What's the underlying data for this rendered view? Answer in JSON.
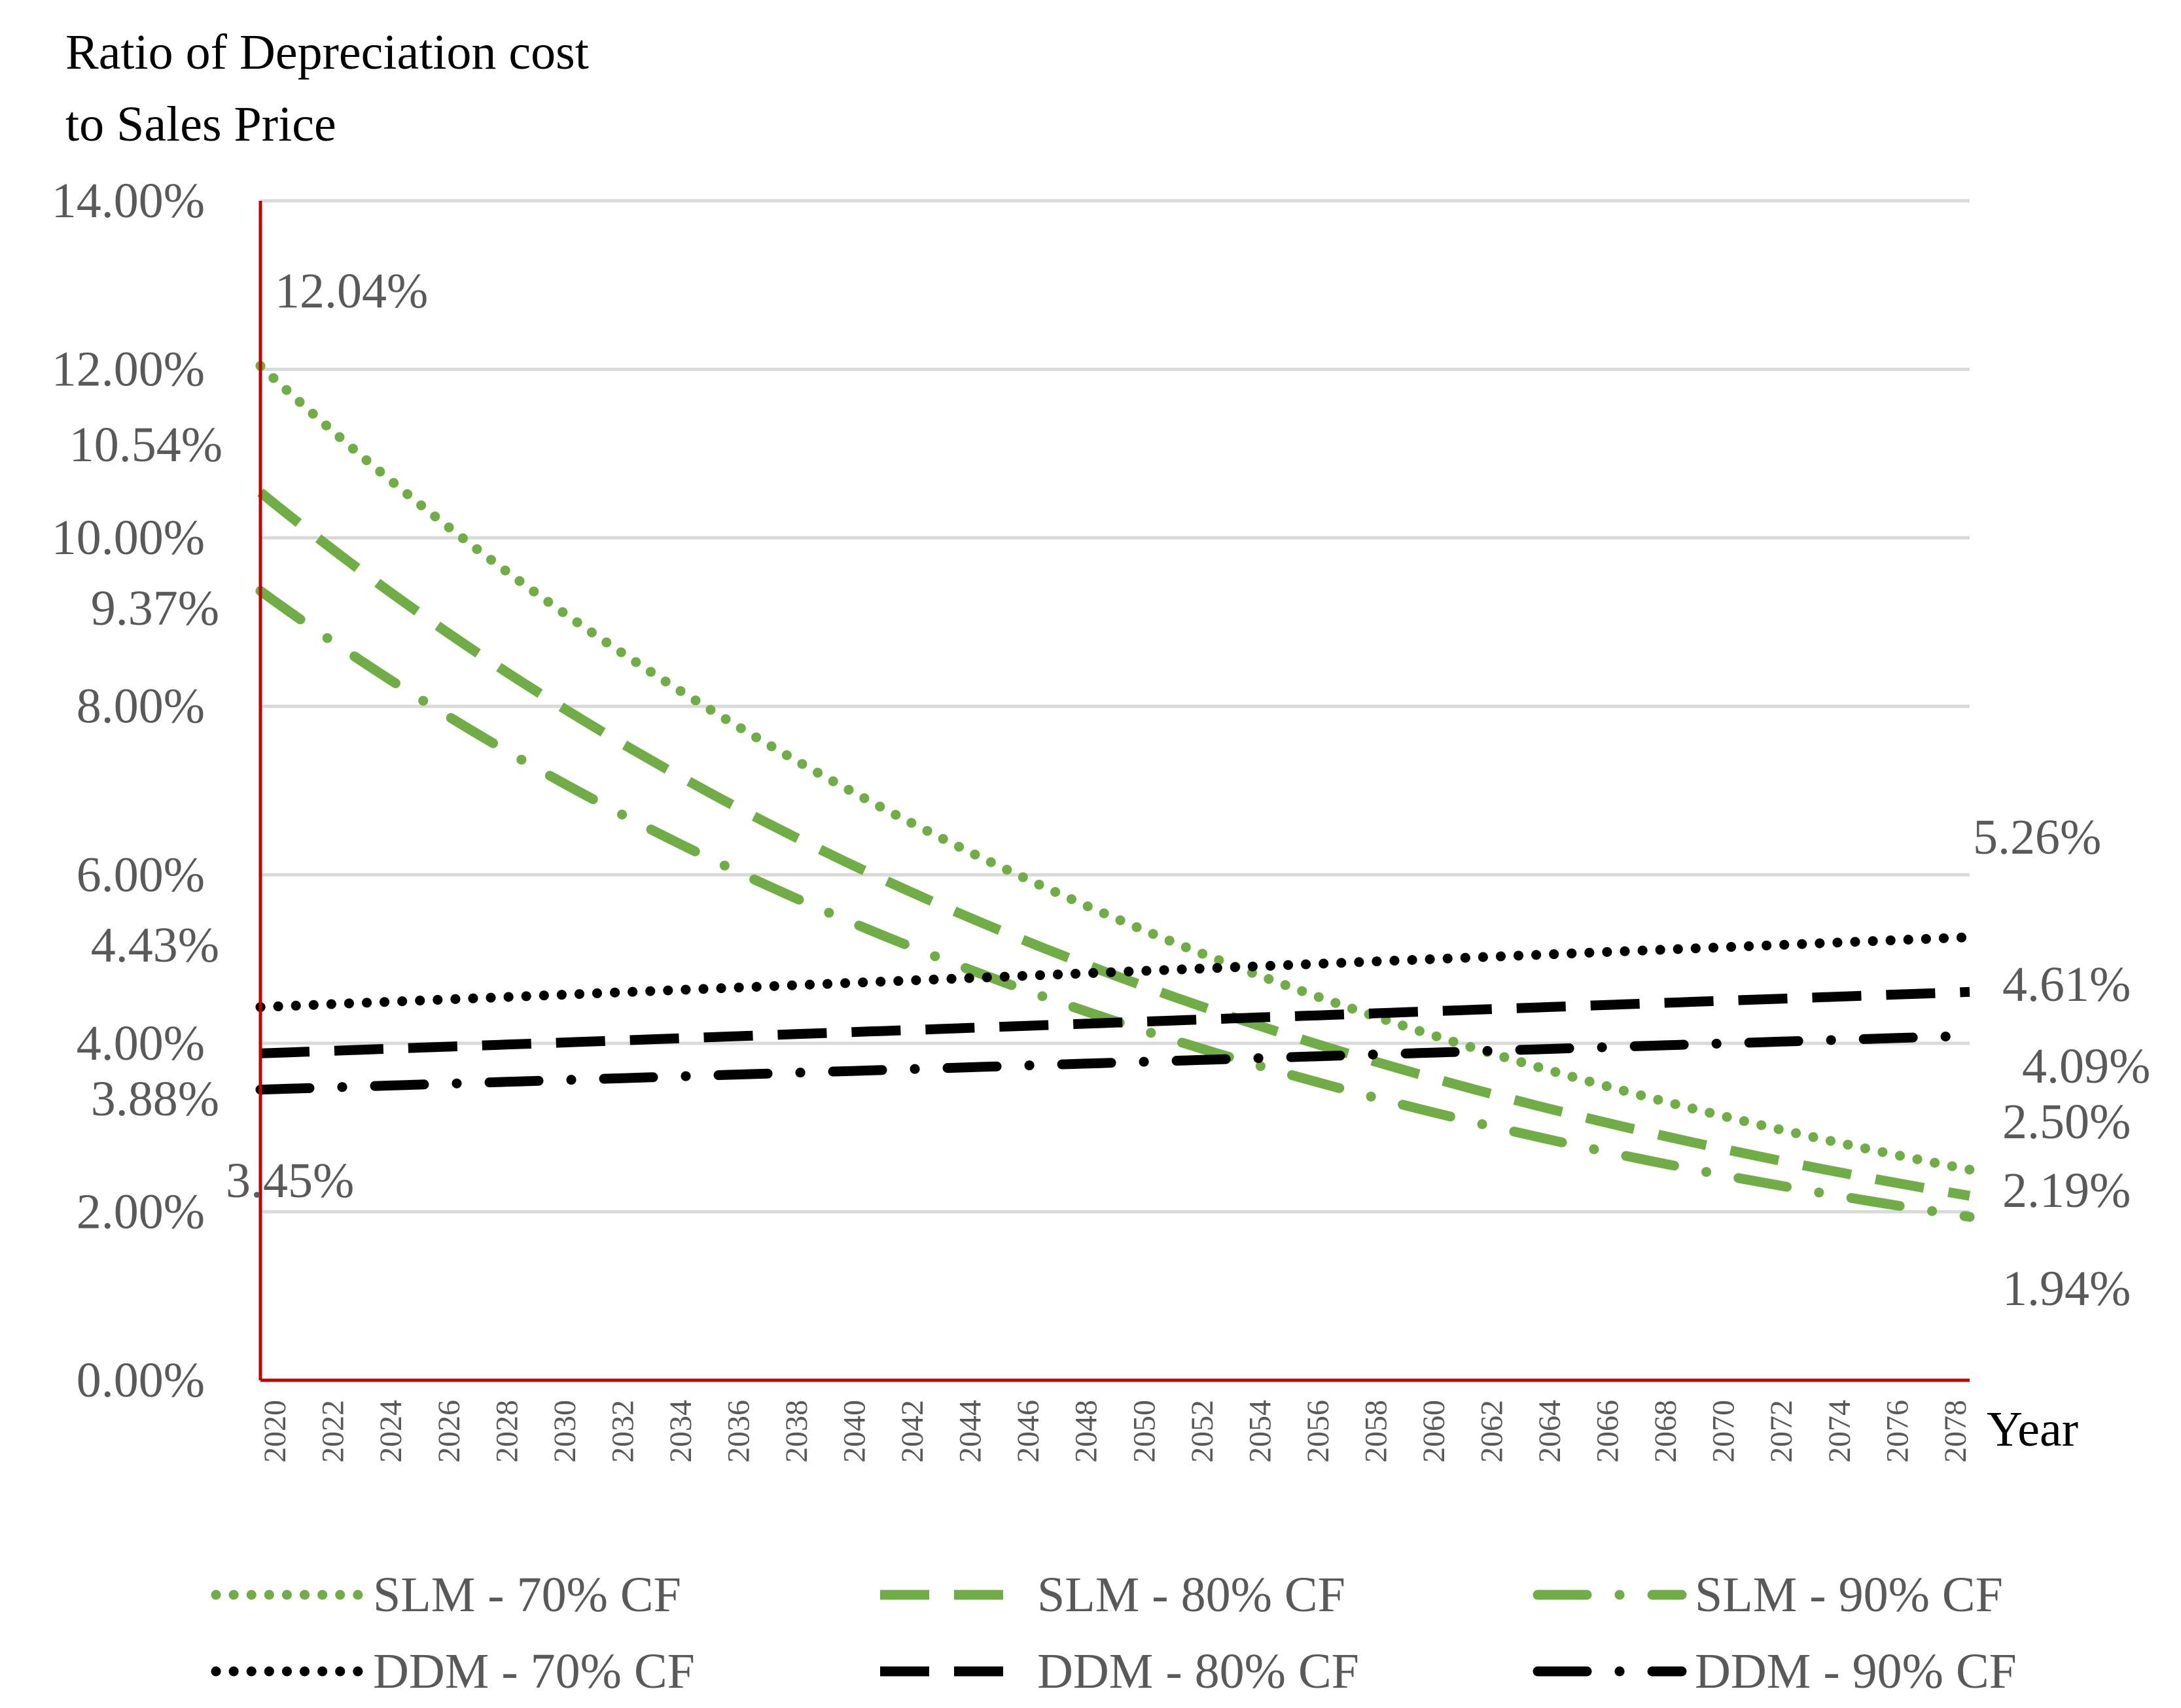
{
  "chart_data": {
    "type": "line",
    "title": "Ratio of Depreciation cost to Sales Price",
    "title_lines": [
      "Ratio of Depreciation cost",
      "to Sales Price"
    ],
    "xlabel": "Year",
    "ylabel": "Ratio of Depreciation cost to Sales Price",
    "ylim": [
      0,
      14
    ],
    "yticks": [
      0,
      2,
      4,
      6,
      8,
      10,
      12,
      14
    ],
    "ytick_labels": [
      "0.00%",
      "2.00%",
      "4.00%",
      "6.00%",
      "8.00%",
      "10.00%",
      "12.00%",
      "14.00%"
    ],
    "xlim": [
      2020,
      2079
    ],
    "xtick_labels": [
      "2020",
      "2022",
      "2024",
      "2026",
      "2028",
      "2030",
      "2032",
      "2034",
      "2036",
      "2038",
      "2040",
      "2042",
      "2044",
      "2046",
      "2048",
      "2050",
      "2052",
      "2054",
      "2056",
      "2058",
      "2060",
      "2062",
      "2064",
      "2066",
      "2068",
      "2070",
      "2072",
      "2074",
      "2076",
      "2078"
    ],
    "grid": true,
    "legend_position": "bottom",
    "series": [
      {
        "name": "SLM - 70% CF",
        "start": 12.04,
        "end": 2.5,
        "start_year": 2020,
        "end_year": 2079,
        "color": "#70ad47",
        "style": "dotted",
        "start_label": "12.04%",
        "end_label": "2.50%"
      },
      {
        "name": "SLM - 80% CF",
        "start": 10.54,
        "end": 2.19,
        "start_year": 2020,
        "end_year": 2079,
        "color": "#70ad47",
        "style": "dashed",
        "start_label": "10.54%",
        "end_label": "2.19%"
      },
      {
        "name": "SLM - 90% CF",
        "start": 9.37,
        "end": 1.94,
        "start_year": 2020,
        "end_year": 2079,
        "color": "#70ad47",
        "style": "dashdot",
        "start_label": "9.37%",
        "end_label": "1.94%"
      },
      {
        "name": "DDM - 70% CF",
        "start": 4.43,
        "end": 5.26,
        "start_year": 2020,
        "end_year": 2079,
        "color": "#000000",
        "style": "dotted",
        "start_label": "4.43%",
        "end_label": "5.26%"
      },
      {
        "name": "DDM - 80% CF",
        "start": 3.88,
        "end": 4.61,
        "start_year": 2020,
        "end_year": 2079,
        "color": "#000000",
        "style": "dashed",
        "start_label": "3.88%",
        "end_label": "4.61%"
      },
      {
        "name": "DDM - 90% CF",
        "start": 3.45,
        "end": 4.09,
        "start_year": 2020,
        "end_year": 2079,
        "color": "#000000",
        "style": "dashdot",
        "start_label": "3.45%",
        "end_label": "4.09%"
      }
    ]
  }
}
